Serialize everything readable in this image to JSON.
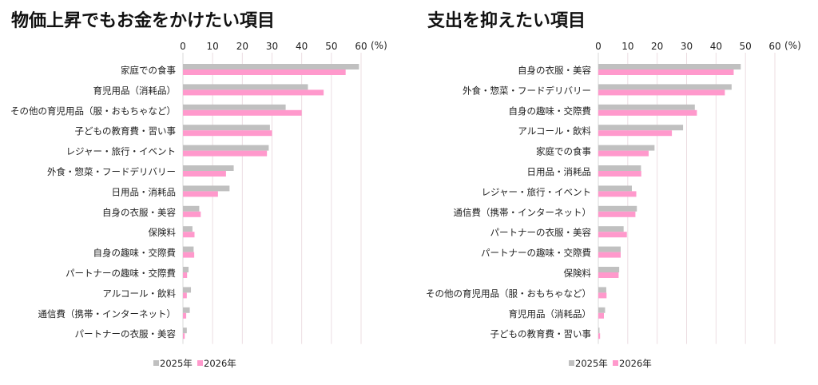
{
  "chart_data": [
    {
      "type": "bar",
      "orientation": "horizontal",
      "title": "物価上昇でもお金をかけたい項目",
      "unit_label": "(%)",
      "xlim": [
        0,
        60
      ],
      "xticks": [
        0,
        10,
        20,
        30,
        40,
        50,
        60
      ],
      "grid": true,
      "legend_position": "bottom",
      "categories": [
        "家庭での食事",
        "育児用品（消耗品）",
        "その他の育児用品（服・おもちゃなど）",
        "子どもの教育費・習い事",
        "レジャー・旅行・イベント",
        "外食・惣菜・フードデリバリー",
        "日用品・消耗品",
        "自身の衣服・美容",
        "保険料",
        "自身の趣味・交際費",
        "パートナーの趣味・交際費",
        "アルコール・飲料",
        "通信費（携帯・インターネット）",
        "パートナーの衣服・美容"
      ],
      "series": [
        {
          "name": "2025年",
          "color": "#c0c0c0",
          "values": [
            59.3,
            42.1,
            34.6,
            29.3,
            28.9,
            17.1,
            15.7,
            5.5,
            3.2,
            3.6,
            1.9,
            2.7,
            2.3,
            1.3
          ]
        },
        {
          "name": "2026年",
          "color": "#ff99cc",
          "values": [
            54.8,
            47.4,
            40.0,
            30.0,
            28.3,
            14.5,
            11.8,
            6.0,
            3.9,
            3.8,
            1.4,
            1.3,
            1.1,
            0.6
          ]
        }
      ]
    },
    {
      "type": "bar",
      "orientation": "horizontal",
      "title": "支出を抑えたい項目",
      "unit_label": "(%)",
      "xlim": [
        0,
        60
      ],
      "xticks": [
        0,
        10,
        20,
        30,
        40,
        50,
        60
      ],
      "grid": true,
      "legend_position": "bottom",
      "categories": [
        "自身の衣服・美容",
        "外食・惣菜・フードデリバリー",
        "自身の趣味・交際費",
        "アルコール・飲料",
        "家庭での食事",
        "日用品・消耗品",
        "レジャー・旅行・イベント",
        "通信費（携帯・インターネット）",
        "パートナーの衣服・美容",
        "パートナーの趣味・交際費",
        "保険料",
        "その他の育児用品（服・おもちゃなど）",
        "育児用品（消耗品）",
        "子どもの教育費・習い事"
      ],
      "series": [
        {
          "name": "2025年",
          "color": "#c0c0c0",
          "values": [
            48.4,
            45.3,
            32.8,
            28.8,
            19.1,
            14.5,
            11.4,
            13.1,
            8.6,
            7.6,
            7.1,
            2.7,
            2.3,
            0.4
          ]
        },
        {
          "name": "2026年",
          "color": "#ff99cc",
          "values": [
            46.0,
            43.0,
            33.5,
            25.0,
            17.1,
            14.6,
            12.9,
            12.6,
            9.7,
            7.6,
            6.9,
            2.8,
            1.9,
            0.6
          ]
        }
      ]
    }
  ]
}
